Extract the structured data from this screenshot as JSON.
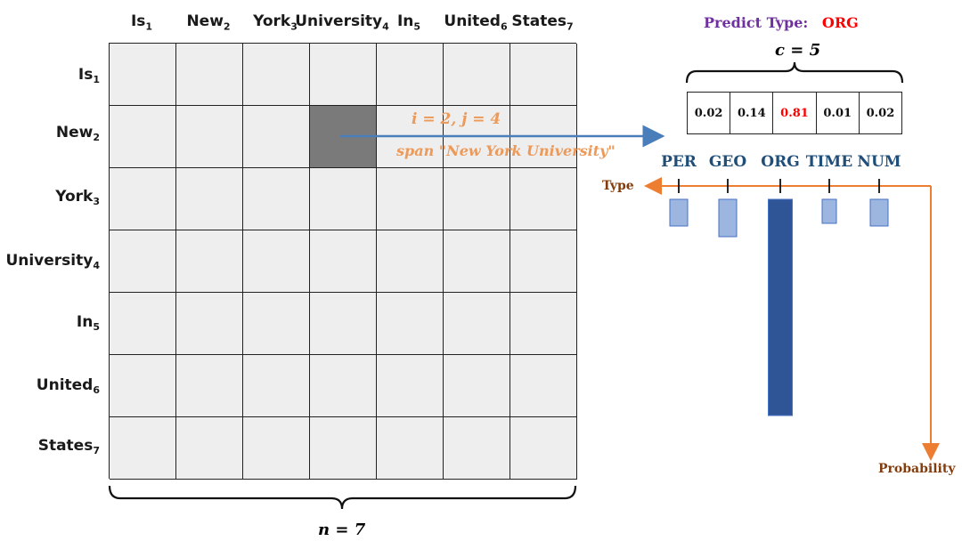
{
  "tokens": [
    {
      "word": "Is",
      "index": "1"
    },
    {
      "word": "New",
      "index": "2"
    },
    {
      "word": "York",
      "index": "3"
    },
    {
      "word": "University",
      "index": "4"
    },
    {
      "word": "In",
      "index": "5"
    },
    {
      "word": "United",
      "index": "6"
    },
    {
      "word": "States",
      "index": "7"
    }
  ],
  "highlight": {
    "row": 2,
    "col": 4
  },
  "span_annotation": {
    "indices": "i = 2, j = 4",
    "text": "span \"New York University\""
  },
  "n_label": "n = 7",
  "c_label": "c = 5",
  "prediction": {
    "label": "Predict Type:",
    "value": "ORG"
  },
  "probabilities": [
    "0.02",
    "0.14",
    "0.81",
    "0.01",
    "0.02"
  ],
  "max_index": 2,
  "types": [
    "PER",
    "GEO",
    "ORG",
    "TIME",
    "NUM"
  ],
  "axis": {
    "type_label": "Type",
    "probability_label": "Probability"
  },
  "colors": {
    "grid_cell": "#eeeeee",
    "highlight_cell": "#7a7a7a",
    "arrow": "#4a7ebb",
    "annotation": "#ec9a5a",
    "axis": "#ed7d31",
    "bar_fill": "#9db6df",
    "bar_max_fill": "#2f5597",
    "bar_stroke": "#4472c4",
    "predict_label": "#7030a0",
    "predict_value": "#ff0000"
  }
}
